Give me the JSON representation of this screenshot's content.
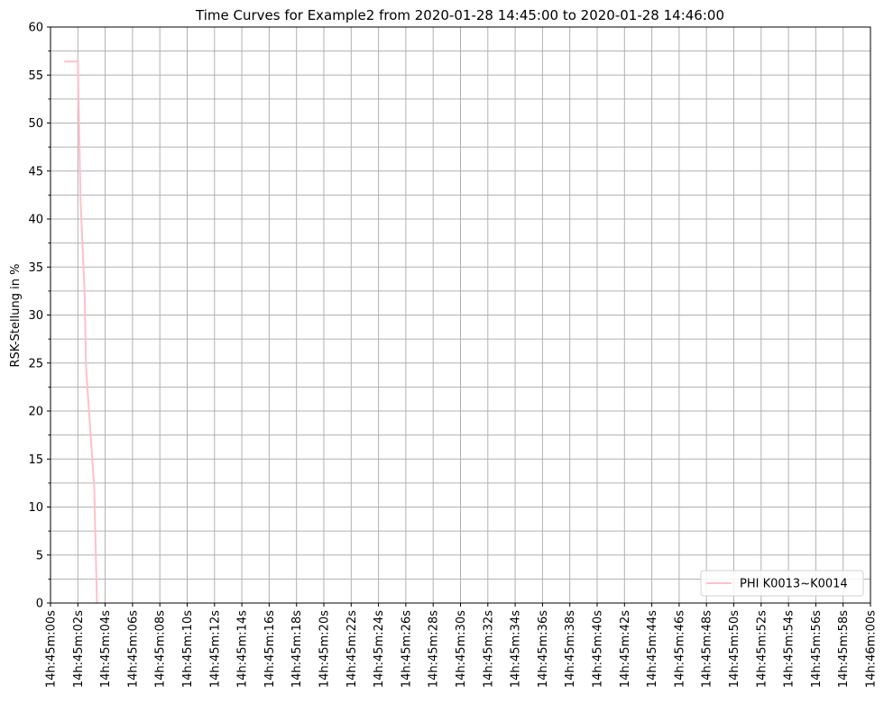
{
  "chart_data": {
    "type": "line",
    "title": "Time Curves for Example2 from 2020-01-28 14:45:00 to 2020-01-28 14:46:00",
    "xlabel": "",
    "ylabel": "RSK-Stellung in %",
    "xlim": [
      "14:45:00",
      "14:46:00"
    ],
    "ylim": [
      0,
      60
    ],
    "grid": true,
    "legend_position": "bottom-right",
    "y_ticks": [
      "0",
      "5",
      "10",
      "15",
      "20",
      "25",
      "30",
      "35",
      "40",
      "45",
      "50",
      "55",
      "60"
    ],
    "x_ticks": [
      "14h:45m:00s",
      "14h:45m:02s",
      "14h:45m:04s",
      "14h:45m:06s",
      "14h:45m:08s",
      "14h:45m:10s",
      "14h:45m:12s",
      "14h:45m:14s",
      "14h:45m:16s",
      "14h:45m:18s",
      "14h:45m:20s",
      "14h:45m:22s",
      "14h:45m:24s",
      "14h:45m:26s",
      "14h:45m:28s",
      "14h:45m:30s",
      "14h:45m:32s",
      "14h:45m:34s",
      "14h:45m:36s",
      "14h:45m:38s",
      "14h:45m:40s",
      "14h:45m:42s",
      "14h:45m:44s",
      "14h:45m:46s",
      "14h:45m:48s",
      "14h:45m:50s",
      "14h:45m:52s",
      "14h:45m:54s",
      "14h:45m:56s",
      "14h:45m:58s",
      "14h:46m:00s"
    ],
    "series": [
      {
        "name": "PHI K0013~K0014",
        "color": "#ffc0cb",
        "x": [
          "14:45:01.0",
          "14:45:02.0",
          "14:45:02.2",
          "14:45:2.5",
          "14:45:02.6",
          "14:45:03.2",
          "14:45:03.4"
        ],
        "y": [
          56.4,
          56.4,
          42.0,
          32.0,
          24.5,
          12.0,
          0.0
        ]
      }
    ]
  }
}
